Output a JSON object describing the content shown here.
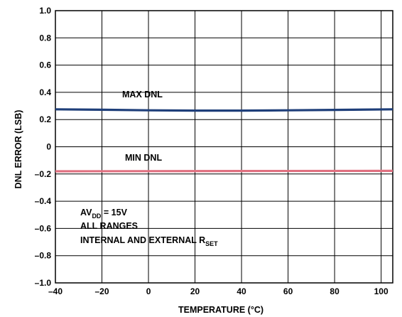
{
  "chart_data": {
    "type": "line",
    "xlabel": "TEMPERATURE (°C)",
    "ylabel": "DNL ERROR (LSB)",
    "xlim": [
      -40,
      105
    ],
    "ylim": [
      -1.0,
      1.0
    ],
    "grid": true,
    "x_ticks": [
      "–40",
      "–20",
      "0",
      "20",
      "40",
      "60",
      "80",
      "100"
    ],
    "y_ticks": [
      "1.0",
      "0.8",
      "0.6",
      "0.4",
      "0.2",
      "0",
      "–0.2",
      "–0.4",
      "–0.6",
      "–0.8",
      "–1.0"
    ],
    "series": [
      {
        "name": "MAX DNL",
        "color": "#1f3f7a",
        "x": [
          -40,
          -20,
          0,
          20,
          40,
          60,
          80,
          105
        ],
        "y": [
          0.275,
          0.272,
          0.268,
          0.266,
          0.266,
          0.268,
          0.271,
          0.275
        ]
      },
      {
        "name": "MIN DNL",
        "color": "#e07080",
        "x": [
          -40,
          0,
          40,
          105
        ],
        "y": [
          -0.18,
          -0.179,
          -0.178,
          -0.177
        ]
      }
    ],
    "annotations": {
      "condition_main": "AV",
      "condition_sub": "DD",
      "condition_tail": " = 15V",
      "line2": "ALL RANGES",
      "line3_main": "INTERNAL AND EXTERNAL R",
      "line3_sub": "SET"
    }
  }
}
